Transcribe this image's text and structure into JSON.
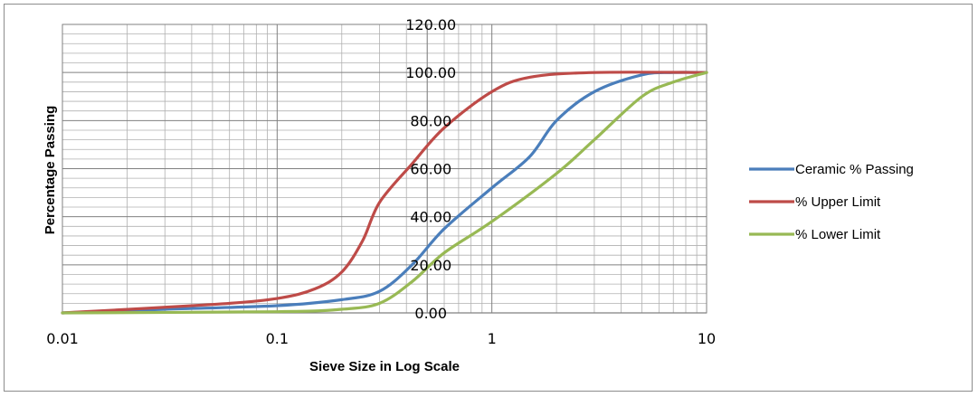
{
  "chart_data": {
    "type": "line",
    "title": "",
    "xlabel": "Sieve Size in Log Scale",
    "ylabel": "Percentage Passing",
    "x_scale": "log",
    "xlim": [
      0.01,
      10
    ],
    "ylim": [
      0,
      120
    ],
    "x_ticks": [
      0.01,
      0.1,
      1,
      10
    ],
    "x_tick_labels": [
      "0.01",
      "0.1",
      "1",
      "10"
    ],
    "y_ticks": [
      0,
      20,
      40,
      60,
      80,
      100,
      120
    ],
    "y_tick_labels": [
      "0.00",
      "20.00",
      "40.00",
      "60.00",
      "80.00",
      "100.00",
      "120.00"
    ],
    "grid": true,
    "legend_position": "right",
    "series": [
      {
        "name": "Ceramic %  Passing",
        "color": "#4a7ebb",
        "points": [
          [
            0.01,
            0
          ],
          [
            0.03,
            1.5
          ],
          [
            0.1,
            3
          ],
          [
            0.2,
            5.5
          ],
          [
            0.3,
            9
          ],
          [
            0.425,
            20
          ],
          [
            0.6,
            35
          ],
          [
            1.0,
            52
          ],
          [
            1.5,
            65
          ],
          [
            2.0,
            80
          ],
          [
            3.0,
            92
          ],
          [
            5.0,
            99
          ],
          [
            7.0,
            100
          ],
          [
            10,
            100
          ]
        ]
      },
      {
        "name": "% Upper Limit",
        "color": "#be4b48",
        "points": [
          [
            0.01,
            0
          ],
          [
            0.05,
            3.5
          ],
          [
            0.1,
            6
          ],
          [
            0.15,
            10
          ],
          [
            0.2,
            17
          ],
          [
            0.25,
            30
          ],
          [
            0.3,
            46
          ],
          [
            0.425,
            62
          ],
          [
            0.6,
            77
          ],
          [
            1.0,
            92
          ],
          [
            1.5,
            98
          ],
          [
            3.0,
            100
          ],
          [
            10,
            100
          ]
        ]
      },
      {
        "name": "% Lower Limit",
        "color": "#98b954",
        "points": [
          [
            0.01,
            0
          ],
          [
            0.1,
            0.5
          ],
          [
            0.2,
            1.5
          ],
          [
            0.3,
            4
          ],
          [
            0.425,
            13
          ],
          [
            0.6,
            25
          ],
          [
            1.0,
            38
          ],
          [
            2.0,
            58
          ],
          [
            3.0,
            72
          ],
          [
            5.0,
            90
          ],
          [
            7.0,
            96
          ],
          [
            10,
            100
          ]
        ]
      }
    ]
  }
}
